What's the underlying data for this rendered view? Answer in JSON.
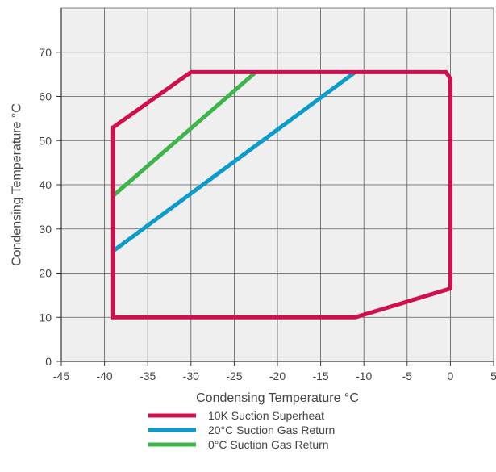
{
  "chart_data": {
    "type": "line",
    "title": "",
    "xlabel": "Condensing Temperature °C",
    "ylabel": "Condensing Temperature °C",
    "xlim": [
      -45,
      5
    ],
    "ylim": [
      0,
      80
    ],
    "xticks": [
      -45,
      -40,
      -35,
      -30,
      -25,
      -20,
      -15,
      -10,
      -5,
      0,
      5
    ],
    "yticks": [
      0,
      10,
      20,
      30,
      40,
      50,
      60,
      70
    ],
    "xtick_labels": [
      "-45",
      "-40",
      "-35",
      "-30",
      "-25",
      "-20",
      "-15",
      "-10",
      "-5",
      "0",
      "5"
    ],
    "ytick_labels": [
      "0",
      "10",
      "20",
      "30",
      "40",
      "50",
      "60",
      "70"
    ],
    "grid": true,
    "legend_position": "bottom",
    "series": [
      {
        "name": "10K Suction Superheat",
        "color": "#d0104c",
        "closed": true,
        "x": [
          -39,
          -39,
          -30,
          -0.5,
          0,
          0,
          -11,
          -39
        ],
        "y": [
          10,
          53,
          65.5,
          65.5,
          64,
          16.5,
          10,
          10
        ]
      },
      {
        "name": "20°C Suction Gas Return",
        "color": "#0b9ccc",
        "closed": false,
        "x": [
          -39,
          -11
        ],
        "y": [
          25,
          65.5
        ]
      },
      {
        "name": "0°C Suction Gas Return",
        "color": "#3db54a",
        "closed": false,
        "x": [
          -39,
          -22.5
        ],
        "y": [
          37.5,
          65.5
        ]
      }
    ]
  }
}
